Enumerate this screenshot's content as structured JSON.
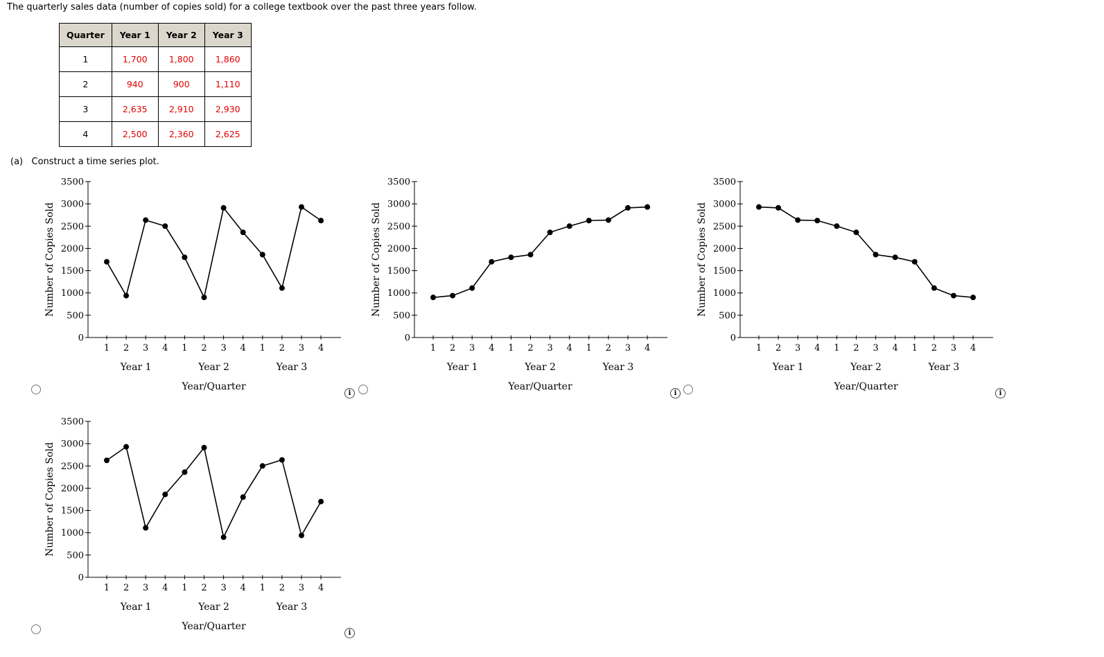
{
  "intro_text": "The quarterly sales data (number of copies sold) for a college textbook over the past three years follow.",
  "table": {
    "headers": [
      "Quarter",
      "Year 1",
      "Year 2",
      "Year 3"
    ],
    "rows": [
      [
        "1",
        "1,700",
        "1,800",
        "1,860"
      ],
      [
        "2",
        "940",
        "900",
        "1,110"
      ],
      [
        "3",
        "2,635",
        "2,910",
        "2,930"
      ],
      [
        "4",
        "2,500",
        "2,360",
        "2,625"
      ]
    ]
  },
  "part_a_label": "(a)",
  "part_a_text": "Construct a time series plot.",
  "info_glyph": "i",
  "chart_data": [
    {
      "type": "line",
      "ylabel": "Number of Copies Sold",
      "xlabel": "Year/Quarter",
      "ylim": [
        0,
        3500
      ],
      "yticks": [
        "0",
        "500",
        "1000",
        "1500",
        "2000",
        "2500",
        "3000",
        "3500"
      ],
      "quarter_labels": [
        "1",
        "2",
        "3",
        "4",
        "1",
        "2",
        "3",
        "4",
        "1",
        "2",
        "3",
        "4"
      ],
      "year_labels": [
        "Year 1",
        "Year 2",
        "Year 3"
      ],
      "values": [
        1700,
        940,
        2635,
        2500,
        1800,
        900,
        2910,
        2360,
        1860,
        1110,
        2930,
        2625
      ]
    },
    {
      "type": "line",
      "ylabel": "Number of Copies Sold",
      "xlabel": "Year/Quarter",
      "ylim": [
        0,
        3500
      ],
      "yticks": [
        "0",
        "500",
        "1000",
        "1500",
        "2000",
        "2500",
        "3000",
        "3500"
      ],
      "quarter_labels": [
        "1",
        "2",
        "3",
        "4",
        "1",
        "2",
        "3",
        "4",
        "1",
        "2",
        "3",
        "4"
      ],
      "year_labels": [
        "Year 1",
        "Year 2",
        "Year 3"
      ],
      "values": [
        900,
        940,
        1110,
        1700,
        1800,
        1860,
        2360,
        2500,
        2625,
        2635,
        2910,
        2930
      ]
    },
    {
      "type": "line",
      "ylabel": "Number of Copies Sold",
      "xlabel": "Year/Quarter",
      "ylim": [
        0,
        3500
      ],
      "yticks": [
        "0",
        "500",
        "1000",
        "1500",
        "2000",
        "2500",
        "3000",
        "3500"
      ],
      "quarter_labels": [
        "1",
        "2",
        "3",
        "4",
        "1",
        "2",
        "3",
        "4",
        "1",
        "2",
        "3",
        "4"
      ],
      "year_labels": [
        "Year 1",
        "Year 2",
        "Year 3"
      ],
      "values": [
        2930,
        2910,
        2635,
        2625,
        2500,
        2360,
        1860,
        1800,
        1700,
        1110,
        940,
        900
      ]
    },
    {
      "type": "line",
      "ylabel": "Number of Copies Sold",
      "xlabel": "Year/Quarter",
      "ylim": [
        0,
        3500
      ],
      "yticks": [
        "0",
        "500",
        "1000",
        "1500",
        "2000",
        "2500",
        "3000",
        "3500"
      ],
      "quarter_labels": [
        "1",
        "2",
        "3",
        "4",
        "1",
        "2",
        "3",
        "4",
        "1",
        "2",
        "3",
        "4"
      ],
      "year_labels": [
        "Year 1",
        "Year 2",
        "Year 3"
      ],
      "values": [
        2625,
        2930,
        1110,
        1860,
        2360,
        2910,
        900,
        1800,
        2500,
        2635,
        940,
        1700
      ]
    }
  ]
}
